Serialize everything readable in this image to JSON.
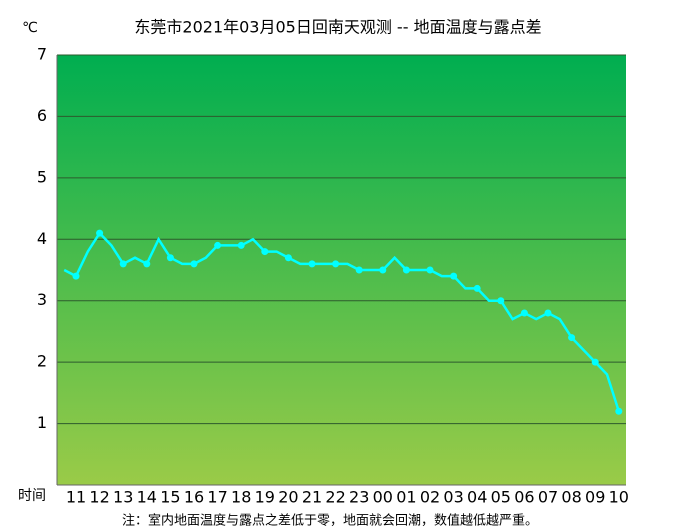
{
  "chart_data": {
    "type": "line",
    "title": "东莞市2021年03月05日回南天观测 -- 地面温度与露点差",
    "y_label": "℃",
    "x_label": "时间",
    "note": "注：室内地面温度与露点之差低于零，地面就会回潮，数值越低越严重。",
    "categories": [
      null,
      "11",
      null,
      "12",
      null,
      "13",
      null,
      "14",
      null,
      "15",
      null,
      "16",
      null,
      "17",
      null,
      "18",
      null,
      "19",
      null,
      "20",
      null,
      "21",
      null,
      "22",
      null,
      "23",
      null,
      "00",
      null,
      "01",
      null,
      "02",
      null,
      "03",
      null,
      "04",
      null,
      "05",
      null,
      "06",
      null,
      "07",
      null,
      "08",
      null,
      "09",
      null,
      "10"
    ],
    "series": [
      {
        "name": "地面温度与露点差",
        "color": "#00ffff",
        "values": [
          3.5,
          3.4,
          3.8,
          4.1,
          3.9,
          3.6,
          3.7,
          3.6,
          4.0,
          3.7,
          3.6,
          3.6,
          3.7,
          3.9,
          3.9,
          3.9,
          4.0,
          3.8,
          3.8,
          3.7,
          3.6,
          3.6,
          3.6,
          3.6,
          3.6,
          3.5,
          3.5,
          3.5,
          3.7,
          3.5,
          3.5,
          3.5,
          3.4,
          3.4,
          3.2,
          3.2,
          3.0,
          3.0,
          2.7,
          2.8,
          2.7,
          2.8,
          2.7,
          2.4,
          2.2,
          2.0,
          1.8,
          1.2
        ]
      }
    ],
    "ylim": [
      0,
      7
    ],
    "yticks": [
      1,
      2,
      3,
      4,
      5,
      6,
      7
    ],
    "grid": true
  }
}
